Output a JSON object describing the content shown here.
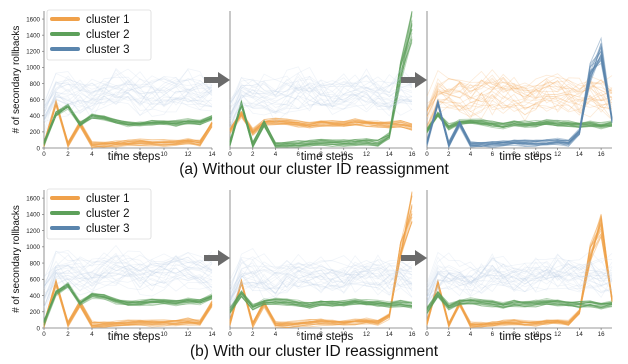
{
  "colors": {
    "cluster_orange": "#f0a14a",
    "cluster_green": "#5da05a",
    "cluster_blue": "#5a85ad",
    "bg_lines_blue": "#b9cde2",
    "arrow": "#6b6b6b"
  },
  "captions": {
    "a": "(a) Without our cluster ID reassignment",
    "b": "(b) With our cluster ID reassignment"
  },
  "icons": [
    "right-arrow-icon"
  ],
  "chart_data": [
    {
      "type": "line",
      "row": "a",
      "panel": 1,
      "ylabel": "# of secondary rollbacks",
      "xlabel": "time steps",
      "x": [
        0,
        1,
        2,
        3,
        4,
        5,
        6,
        7,
        8,
        9,
        10,
        11,
        12,
        13,
        14
      ],
      "xticks": [
        0,
        2,
        4,
        6,
        8,
        10,
        12,
        14
      ],
      "yticks": [
        0,
        200,
        400,
        600,
        800,
        1000,
        1200,
        1400,
        1600
      ],
      "ylim": [
        0,
        1700
      ],
      "legend": [
        "cluster 1",
        "cluster 2",
        "cluster 3"
      ],
      "legend_position": "top-left",
      "series": [
        {
          "name": "cluster 1",
          "color": "#f0a14a",
          "values": [
            40,
            560,
            50,
            300,
            40,
            40,
            50,
            60,
            70,
            60,
            60,
            70,
            80,
            60,
            300
          ]
        },
        {
          "name": "cluster 2",
          "color": "#5da05a",
          "values": [
            60,
            430,
            520,
            300,
            400,
            380,
            330,
            300,
            300,
            320,
            320,
            310,
            330,
            320,
            380
          ]
        },
        {
          "name": "cluster 3",
          "color": "#5a85ad",
          "values": [
            400,
            700,
            680,
            650,
            620,
            680,
            720,
            700,
            660,
            640,
            660,
            700,
            700,
            680,
            650
          ]
        }
      ]
    },
    {
      "type": "line",
      "row": "a",
      "panel": 2,
      "xlabel": "time steps",
      "x": [
        0,
        1,
        2,
        3,
        4,
        5,
        6,
        7,
        8,
        9,
        10,
        11,
        12,
        13,
        14,
        15,
        16
      ],
      "xticks": [
        0,
        2,
        4,
        6,
        8,
        10,
        12,
        14,
        16
      ],
      "ylim": [
        0,
        1700
      ],
      "series": [
        {
          "name": "cluster 1",
          "color": "#f0a14a",
          "values": [
            220,
            420,
            200,
            320,
            330,
            320,
            300,
            280,
            310,
            300,
            300,
            320,
            310,
            300,
            290,
            300,
            260
          ]
        },
        {
          "name": "cluster 2",
          "color": "#5da05a",
          "values": [
            60,
            560,
            40,
            300,
            40,
            40,
            50,
            60,
            70,
            60,
            60,
            70,
            80,
            60,
            150,
            950,
            1500
          ]
        },
        {
          "name": "cluster 3",
          "color": "#5a85ad",
          "values": [
            400,
            700,
            680,
            650,
            620,
            680,
            720,
            700,
            660,
            640,
            660,
            700,
            700,
            680,
            650,
            700,
            650
          ]
        }
      ]
    },
    {
      "type": "line",
      "row": "a",
      "panel": 3,
      "xlabel": "time steps",
      "x": [
        0,
        1,
        2,
        3,
        4,
        5,
        6,
        7,
        8,
        9,
        10,
        11,
        12,
        13,
        14,
        15,
        16,
        17
      ],
      "xticks": [
        0,
        2,
        4,
        6,
        8,
        10,
        12,
        14,
        16
      ],
      "ylim": [
        0,
        1700
      ],
      "series": [
        {
          "name": "cluster 1",
          "color": "#f0a14a",
          "values": [
            400,
            700,
            680,
            650,
            620,
            680,
            720,
            700,
            660,
            640,
            660,
            700,
            700,
            680,
            650,
            700,
            650,
            640
          ]
        },
        {
          "name": "cluster 2",
          "color": "#5da05a",
          "values": [
            220,
            420,
            260,
            320,
            330,
            320,
            300,
            280,
            310,
            300,
            300,
            320,
            310,
            300,
            290,
            300,
            280,
            300
          ]
        },
        {
          "name": "cluster 3",
          "color": "#5a85ad",
          "values": [
            60,
            560,
            40,
            300,
            40,
            40,
            50,
            60,
            70,
            60,
            60,
            70,
            80,
            60,
            200,
            900,
            1200,
            350
          ]
        }
      ]
    },
    {
      "type": "line",
      "row": "b",
      "panel": 1,
      "ylabel": "# of secondary rollbacks",
      "xlabel": "time steps",
      "x": [
        0,
        1,
        2,
        3,
        4,
        5,
        6,
        7,
        8,
        9,
        10,
        11,
        12,
        13,
        14
      ],
      "xticks": [
        0,
        2,
        4,
        6,
        8,
        10,
        12,
        14
      ],
      "yticks": [
        0,
        200,
        400,
        600,
        800,
        1000,
        1200,
        1400,
        1600
      ],
      "ylim": [
        0,
        1700
      ],
      "legend": [
        "cluster 1",
        "cluster 2",
        "cluster 3"
      ],
      "legend_position": "top-left",
      "series": [
        {
          "name": "cluster 1",
          "color": "#f0a14a",
          "values": [
            40,
            560,
            50,
            300,
            40,
            40,
            50,
            60,
            70,
            60,
            60,
            70,
            80,
            60,
            300
          ]
        },
        {
          "name": "cluster 2",
          "color": "#5da05a",
          "values": [
            60,
            430,
            520,
            300,
            400,
            380,
            330,
            300,
            300,
            320,
            320,
            310,
            330,
            320,
            380
          ]
        },
        {
          "name": "cluster 3",
          "color": "#5a85ad",
          "values": [
            400,
            700,
            680,
            650,
            620,
            680,
            720,
            700,
            660,
            640,
            660,
            700,
            700,
            680,
            650
          ]
        }
      ]
    },
    {
      "type": "line",
      "row": "b",
      "panel": 2,
      "xlabel": "time steps",
      "x": [
        0,
        1,
        2,
        3,
        4,
        5,
        6,
        7,
        8,
        9,
        10,
        11,
        12,
        13,
        14,
        15,
        16
      ],
      "xticks": [
        0,
        2,
        4,
        6,
        8,
        10,
        12,
        14,
        16
      ],
      "ylim": [
        0,
        1700
      ],
      "series": [
        {
          "name": "cluster 1",
          "color": "#f0a14a",
          "values": [
            60,
            560,
            40,
            300,
            40,
            40,
            50,
            60,
            70,
            60,
            60,
            70,
            80,
            60,
            150,
            950,
            1500
          ]
        },
        {
          "name": "cluster 2",
          "color": "#5da05a",
          "values": [
            220,
            420,
            260,
            320,
            330,
            320,
            300,
            280,
            310,
            300,
            300,
            320,
            310,
            300,
            290,
            300,
            280
          ]
        },
        {
          "name": "cluster 3",
          "color": "#5a85ad",
          "values": [
            400,
            700,
            680,
            650,
            620,
            680,
            720,
            700,
            660,
            640,
            660,
            700,
            700,
            680,
            650,
            700,
            650
          ]
        }
      ]
    },
    {
      "type": "line",
      "row": "b",
      "panel": 3,
      "xlabel": "time steps",
      "x": [
        0,
        1,
        2,
        3,
        4,
        5,
        6,
        7,
        8,
        9,
        10,
        11,
        12,
        13,
        14,
        15,
        16,
        17
      ],
      "xticks": [
        0,
        2,
        4,
        6,
        8,
        10,
        12,
        14,
        16
      ],
      "ylim": [
        0,
        1700
      ],
      "series": [
        {
          "name": "cluster 1",
          "color": "#f0a14a",
          "values": [
            60,
            560,
            40,
            300,
            40,
            40,
            50,
            60,
            70,
            60,
            60,
            70,
            80,
            60,
            200,
            900,
            1250,
            350
          ]
        },
        {
          "name": "cluster 2",
          "color": "#5da05a",
          "values": [
            220,
            420,
            260,
            320,
            330,
            320,
            300,
            280,
            310,
            300,
            300,
            320,
            310,
            300,
            290,
            300,
            280,
            300
          ]
        },
        {
          "name": "cluster 3",
          "color": "#5a85ad",
          "values": [
            400,
            700,
            680,
            650,
            620,
            680,
            720,
            700,
            660,
            640,
            660,
            700,
            700,
            680,
            650,
            700,
            650,
            640
          ]
        }
      ]
    }
  ]
}
